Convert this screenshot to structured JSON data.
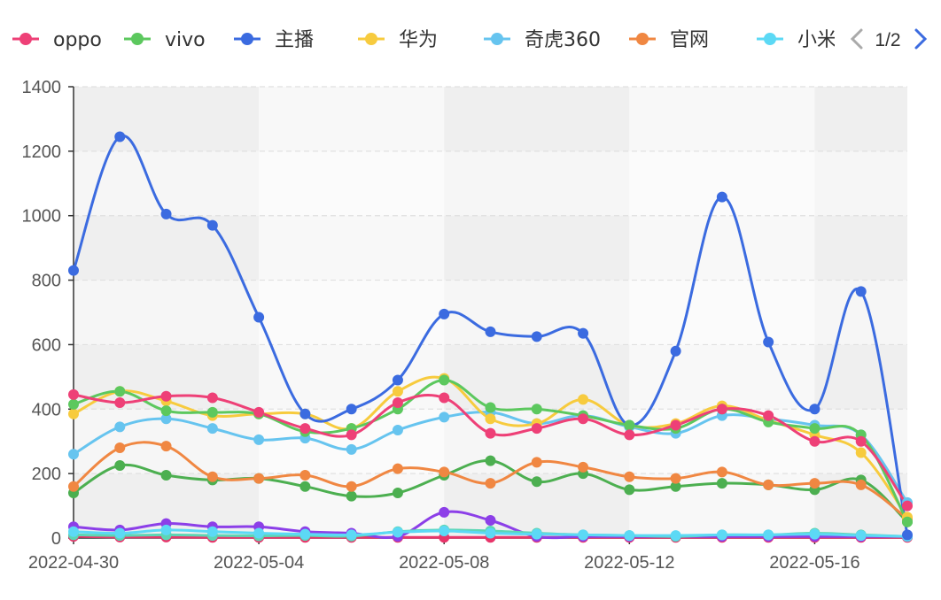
{
  "chart_data": {
    "type": "line",
    "smooth": true,
    "x": [
      "2022-04-30",
      "2022-05-01",
      "2022-05-02",
      "2022-05-03",
      "2022-05-04",
      "2022-05-05",
      "2022-05-06",
      "2022-05-07",
      "2022-05-08",
      "2022-05-09",
      "2022-05-10",
      "2022-05-11",
      "2022-05-12",
      "2022-05-13",
      "2022-05-14",
      "2022-05-15",
      "2022-05-16",
      "2022-05-17",
      "2022-05-18"
    ],
    "x_tick_labels": [
      "2022-04-30",
      "2022-05-04",
      "2022-05-08",
      "2022-05-12",
      "2022-05-16"
    ],
    "ylim": [
      0,
      1400
    ],
    "y_ticks": [
      0,
      200,
      400,
      600,
      800,
      1000,
      1200,
      1400
    ],
    "grid": true,
    "legend_position": "top",
    "legend_page": "1/2",
    "series": [
      {
        "name": "oppo",
        "color": "#ee4077",
        "values": [
          445,
          420,
          440,
          435,
          390,
          340,
          320,
          420,
          435,
          325,
          340,
          370,
          320,
          350,
          400,
          380,
          300,
          300,
          100
        ]
      },
      {
        "name": "vivo",
        "color": "#5cc85e",
        "values": [
          415,
          455,
          395,
          390,
          385,
          330,
          340,
          400,
          490,
          405,
          400,
          380,
          350,
          340,
          400,
          360,
          340,
          320,
          50
        ]
      },
      {
        "name": "主播",
        "color": "#3b6be0",
        "values": [
          830,
          1245,
          1005,
          970,
          685,
          385,
          400,
          490,
          695,
          640,
          625,
          635,
          350,
          580,
          1058,
          608,
          400,
          765,
          10
        ]
      },
      {
        "name": "华为",
        "color": "#f7cb3e",
        "values": [
          385,
          455,
          425,
          380,
          385,
          385,
          340,
          455,
          495,
          370,
          355,
          430,
          350,
          355,
          410,
          365,
          320,
          265,
          65
        ]
      },
      {
        "name": "奇虎360",
        "color": "#66c4ef",
        "values": [
          260,
          345,
          370,
          340,
          305,
          310,
          275,
          335,
          375,
          390,
          355,
          380,
          345,
          325,
          380,
          370,
          350,
          320,
          110
        ]
      },
      {
        "name": "官网",
        "color": "#f08742",
        "values": [
          160,
          280,
          285,
          190,
          185,
          195,
          160,
          215,
          205,
          170,
          235,
          220,
          190,
          185,
          205,
          165,
          170,
          165,
          60
        ]
      },
      {
        "name": "小米",
        "color": "#5cd9f5",
        "values": [
          20,
          15,
          25,
          20,
          15,
          12,
          10,
          18,
          22,
          15,
          12,
          10,
          8,
          8,
          10,
          10,
          12,
          8,
          5
        ]
      },
      {
        "name": "",
        "color": "#5dd6b4",
        "values": [
          10,
          8,
          10,
          8,
          7,
          8,
          6,
          20,
          25,
          22,
          15,
          10,
          8,
          5,
          10,
          10,
          15,
          10,
          5
        ]
      },
      {
        "name": "",
        "color": "#8c3fe8",
        "values": [
          35,
          25,
          45,
          35,
          35,
          20,
          15,
          5,
          80,
          55,
          5,
          5,
          5,
          5,
          5,
          5,
          5,
          5,
          5
        ]
      },
      {
        "name": "",
        "color": "#e8356a",
        "values": [
          5,
          3,
          3,
          2,
          2,
          2,
          2,
          2,
          2,
          2,
          2,
          2,
          2,
          2,
          2,
          2,
          2,
          2,
          2
        ]
      },
      {
        "name": "",
        "color": "#4caf50",
        "values": [
          140,
          225,
          195,
          180,
          185,
          160,
          130,
          140,
          195,
          240,
          175,
          200,
          150,
          160,
          170,
          165,
          150,
          180,
          50
        ]
      }
    ]
  }
}
